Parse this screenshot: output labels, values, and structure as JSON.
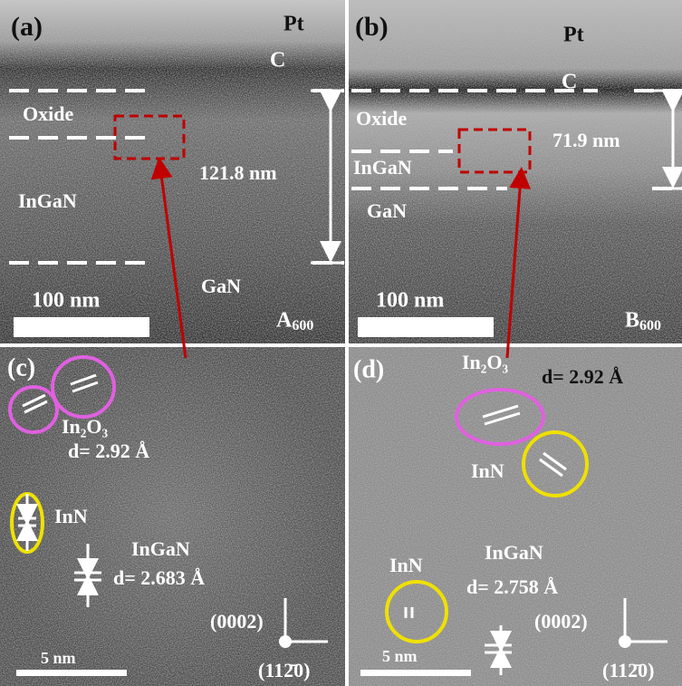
{
  "panels": [
    {
      "label": "(a)",
      "layers": {
        "pt": "Pt",
        "c": "C",
        "oxide": "Oxide",
        "ingan": "InGaN",
        "gan": "GaN"
      },
      "thickness": "121.8 nm",
      "scale_bar": "100 nm",
      "sample": "A",
      "sample_sub": "600"
    },
    {
      "label": "(b)",
      "layers": {
        "pt": "Pt",
        "c": "C",
        "oxide": "Oxide",
        "ingan": "InGaN",
        "gan": "GaN"
      },
      "thickness": "71.9 nm",
      "scale_bar": "100 nm",
      "sample": "B",
      "sample_sub": "600"
    },
    {
      "label": "(c)",
      "phases": [
        "In₂O₃",
        "InN",
        "InGaN"
      ],
      "spacings": [
        "d= 2.92 Å",
        "d= 2.683 Å"
      ],
      "directions": [
        "(0002)",
        "(112̄0)"
      ],
      "scale_bar": "5 nm"
    },
    {
      "label": "(d)",
      "phases": [
        "In₂O₃",
        "InN",
        "InN",
        "InGaN"
      ],
      "spacings": [
        "d= 2.92 Å",
        "d= 2.758 Å"
      ],
      "directions": [
        "(0002)",
        "(112̄0)"
      ],
      "scale_bar": "5 nm"
    }
  ]
}
